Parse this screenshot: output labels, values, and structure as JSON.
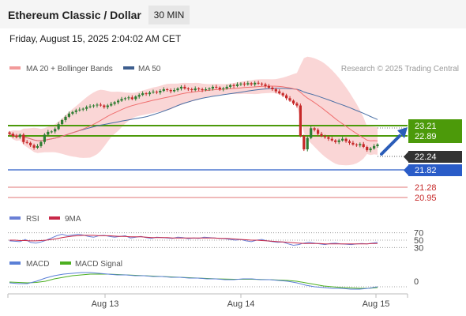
{
  "header": {
    "title": "Ethereum Classic / Dollar",
    "timeframe": "30 MIN",
    "datetime": "Friday, August 15, 2025 2:04:02 AM CET"
  },
  "legend": {
    "ma20": "MA 20 + Bollinger Bands",
    "ma50": "MA 50",
    "credit": "Research © 2025 Trading Central",
    "rsi": "RSI",
    "rsi_ma": "9MA",
    "macd": "MACD",
    "macd_signal": "MACD Signal"
  },
  "colors": {
    "candle_up": "#2e7d32",
    "candle_down": "#c62828",
    "band_fill": "#f8c8c8",
    "ma20": "#f07070",
    "ma50": "#4a6fa5",
    "green_level": "#4c9a0a",
    "blue_level": "#2a5cc8",
    "red_level": "#e89090",
    "current_price_bg": "#333333",
    "arrow": "#2a5cb8",
    "rsi_line": "#6a7fd6",
    "rsi_ma_line": "#c82848",
    "macd_line": "#5a7fd6",
    "macd_signal_line": "#4caf20"
  },
  "chart_data": [
    {
      "type": "candlestick",
      "panel": "price",
      "x_ticks": [
        "Aug 13",
        "Aug 14",
        "Aug 15"
      ],
      "ylim": [
        20.7,
        23.95
      ],
      "close": [
        22.5,
        22.45,
        22.42,
        22.48,
        22.3,
        22.28,
        22.22,
        22.16,
        22.2,
        22.3,
        22.48,
        22.55,
        22.56,
        22.62,
        22.74,
        22.84,
        22.92,
        23.0,
        23.04,
        23.08,
        23.1,
        23.12,
        23.16,
        23.18,
        23.2,
        23.22,
        23.2,
        23.16,
        23.2,
        23.24,
        23.28,
        23.32,
        23.36,
        23.38,
        23.4,
        23.36,
        23.42,
        23.46,
        23.5,
        23.48,
        23.52,
        23.54,
        23.52,
        23.56,
        23.6,
        23.58,
        23.55,
        23.58,
        23.62,
        23.66,
        23.62,
        23.6,
        23.58,
        23.62,
        23.6,
        23.58,
        23.6,
        23.62,
        23.66,
        23.64,
        23.6,
        23.62,
        23.66,
        23.7,
        23.68,
        23.72,
        23.74,
        23.72,
        23.75,
        23.72,
        23.76,
        23.74,
        23.72,
        23.68,
        23.64,
        23.6,
        23.55,
        23.5,
        23.45,
        23.38,
        23.32,
        23.25,
        23.2,
        22.45,
        22.12,
        22.4,
        22.64,
        22.6,
        22.5,
        22.45,
        22.42,
        22.38,
        22.34,
        22.3,
        22.34,
        22.38,
        22.32,
        22.28,
        22.24,
        22.22,
        22.25,
        22.18,
        22.1,
        22.14,
        22.2,
        22.24
      ],
      "levels": {
        "resistance": [
          23.21,
          22.89
        ],
        "current": 22.24,
        "support": [
          21.82,
          21.28,
          20.95
        ]
      },
      "level_labels": [
        "23.21",
        "22.89",
        "22.24",
        "21.82",
        "21.28",
        "20.95"
      ],
      "projection_arrow": "up"
    },
    {
      "type": "line",
      "panel": "rsi",
      "series": [
        {
          "name": "RSI",
          "values": [
            48,
            47,
            46,
            52,
            44,
            42,
            45,
            50,
            56,
            62,
            66,
            62,
            64,
            66,
            64,
            60,
            58,
            62,
            63,
            60,
            58,
            60,
            62,
            56,
            58,
            60,
            57,
            55,
            58,
            57,
            56,
            55,
            58,
            57,
            54,
            56,
            55,
            58,
            57,
            56,
            55,
            54,
            52,
            50,
            52,
            48,
            46,
            50,
            52,
            48,
            46,
            44,
            45,
            40,
            36,
            38,
            42,
            44,
            42,
            40,
            38,
            41,
            42,
            40,
            39,
            38,
            40,
            41,
            40,
            42,
            44
          ]
        },
        {
          "name": "9MA",
          "values": [
            50,
            50,
            49,
            49,
            48,
            48,
            49,
            50,
            52,
            54,
            57,
            59,
            61,
            62,
            63,
            63,
            63,
            62,
            62,
            62,
            61,
            60,
            60,
            59,
            59,
            59,
            58,
            57,
            57,
            57,
            57,
            56,
            56,
            56,
            56,
            56,
            56,
            56,
            56,
            56,
            55,
            55,
            54,
            53,
            52,
            51,
            50,
            50,
            49,
            48,
            47,
            46,
            45,
            44,
            43,
            42,
            41,
            41,
            41,
            41,
            40,
            40,
            40,
            40,
            40,
            40,
            40,
            40,
            40,
            41,
            41
          ]
        }
      ],
      "y_ticks": [
        "70",
        "50",
        "30"
      ]
    },
    {
      "type": "line",
      "panel": "macd",
      "series": [
        {
          "name": "MACD",
          "values": [
            -0.02,
            -0.03,
            -0.03,
            0.0,
            0.04,
            0.07,
            0.09,
            0.1,
            0.11,
            0.11,
            0.1,
            0.09,
            0.08,
            0.08,
            0.07,
            0.07,
            0.06,
            0.06,
            0.05,
            0.05,
            0.04,
            0.04,
            0.03,
            0.03,
            0.02,
            0.02,
            0.03,
            0.03,
            0.02,
            0.02,
            0.01,
            0.0,
            -0.02,
            -0.05,
            -0.07,
            -0.08,
            -0.09,
            -0.09,
            -0.1,
            -0.1,
            -0.09,
            -0.07
          ]
        },
        {
          "name": "MACD Signal",
          "values": [
            -0.01,
            -0.015,
            -0.02,
            -0.015,
            0.0,
            0.03,
            0.05,
            0.07,
            0.08,
            0.09,
            0.09,
            0.09,
            0.085,
            0.08,
            0.075,
            0.07,
            0.065,
            0.06,
            0.055,
            0.05,
            0.045,
            0.04,
            0.035,
            0.03,
            0.028,
            0.025,
            0.025,
            0.025,
            0.022,
            0.02,
            0.015,
            0.01,
            0.0,
            -0.02,
            -0.04,
            -0.06,
            -0.07,
            -0.08,
            -0.085,
            -0.09,
            -0.09,
            -0.08
          ]
        }
      ],
      "y_ticks": [
        "0"
      ]
    }
  ]
}
